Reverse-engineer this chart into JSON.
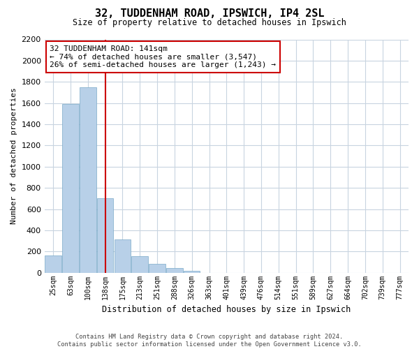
{
  "title": "32, TUDDENHAM ROAD, IPSWICH, IP4 2SL",
  "subtitle": "Size of property relative to detached houses in Ipswich",
  "xlabel": "Distribution of detached houses by size in Ipswich",
  "ylabel": "Number of detached properties",
  "categories": [
    "25sqm",
    "63sqm",
    "100sqm",
    "138sqm",
    "175sqm",
    "213sqm",
    "251sqm",
    "288sqm",
    "326sqm",
    "363sqm",
    "401sqm",
    "439sqm",
    "476sqm",
    "514sqm",
    "551sqm",
    "589sqm",
    "627sqm",
    "664sqm",
    "702sqm",
    "739sqm",
    "777sqm"
  ],
  "values": [
    160,
    1590,
    1750,
    700,
    315,
    155,
    80,
    45,
    20,
    0,
    0,
    0,
    0,
    0,
    0,
    0,
    0,
    0,
    0,
    0,
    0
  ],
  "bar_color": "#b8d0e8",
  "bar_edge_color": "#7aaac8",
  "vline_color": "#cc0000",
  "vline_x": 3.5,
  "annotation_line1": "32 TUDDENHAM ROAD: 141sqm",
  "annotation_line2": "← 74% of detached houses are smaller (3,547)",
  "annotation_line3": "26% of semi-detached houses are larger (1,243) →",
  "annotation_box_color": "#ffffff",
  "annotation_box_edge": "#cc0000",
  "ylim": [
    0,
    2200
  ],
  "yticks": [
    0,
    200,
    400,
    600,
    800,
    1000,
    1200,
    1400,
    1600,
    1800,
    2000,
    2200
  ],
  "footer_line1": "Contains HM Land Registry data © Crown copyright and database right 2024.",
  "footer_line2": "Contains public sector information licensed under the Open Government Licence v3.0.",
  "background_color": "#ffffff",
  "grid_color": "#c8d4e0"
}
